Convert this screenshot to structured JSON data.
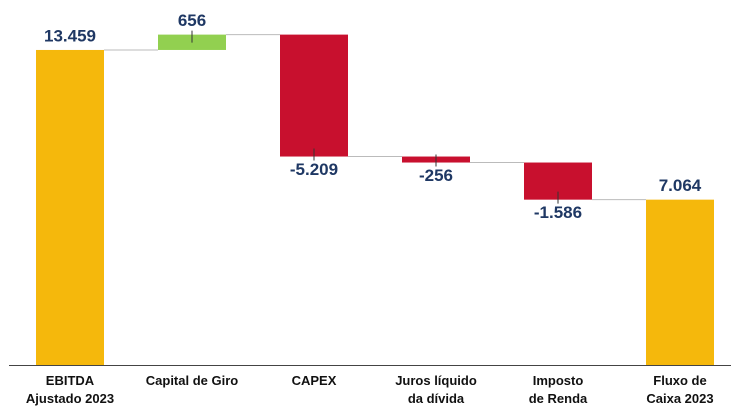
{
  "chart_data": {
    "type": "waterfall",
    "categories": [
      "EBITDA\nAjustado 2023",
      "Capital de Giro",
      "CAPEX",
      "Juros líquido\nda dívida",
      "Imposto\nde Renda",
      "Fluxo de\nCaixa 2023"
    ],
    "values": [
      13459,
      656,
      -5209,
      -256,
      -1586,
      7064
    ],
    "value_labels": [
      "13.459",
      "656",
      "-5.209",
      "-256",
      "-1.586",
      "7.064"
    ],
    "colors": {
      "total": "#f5b80c",
      "increase": "#92d050",
      "decrease": "#c8102e"
    },
    "ylim": [
      0,
      14000
    ]
  }
}
